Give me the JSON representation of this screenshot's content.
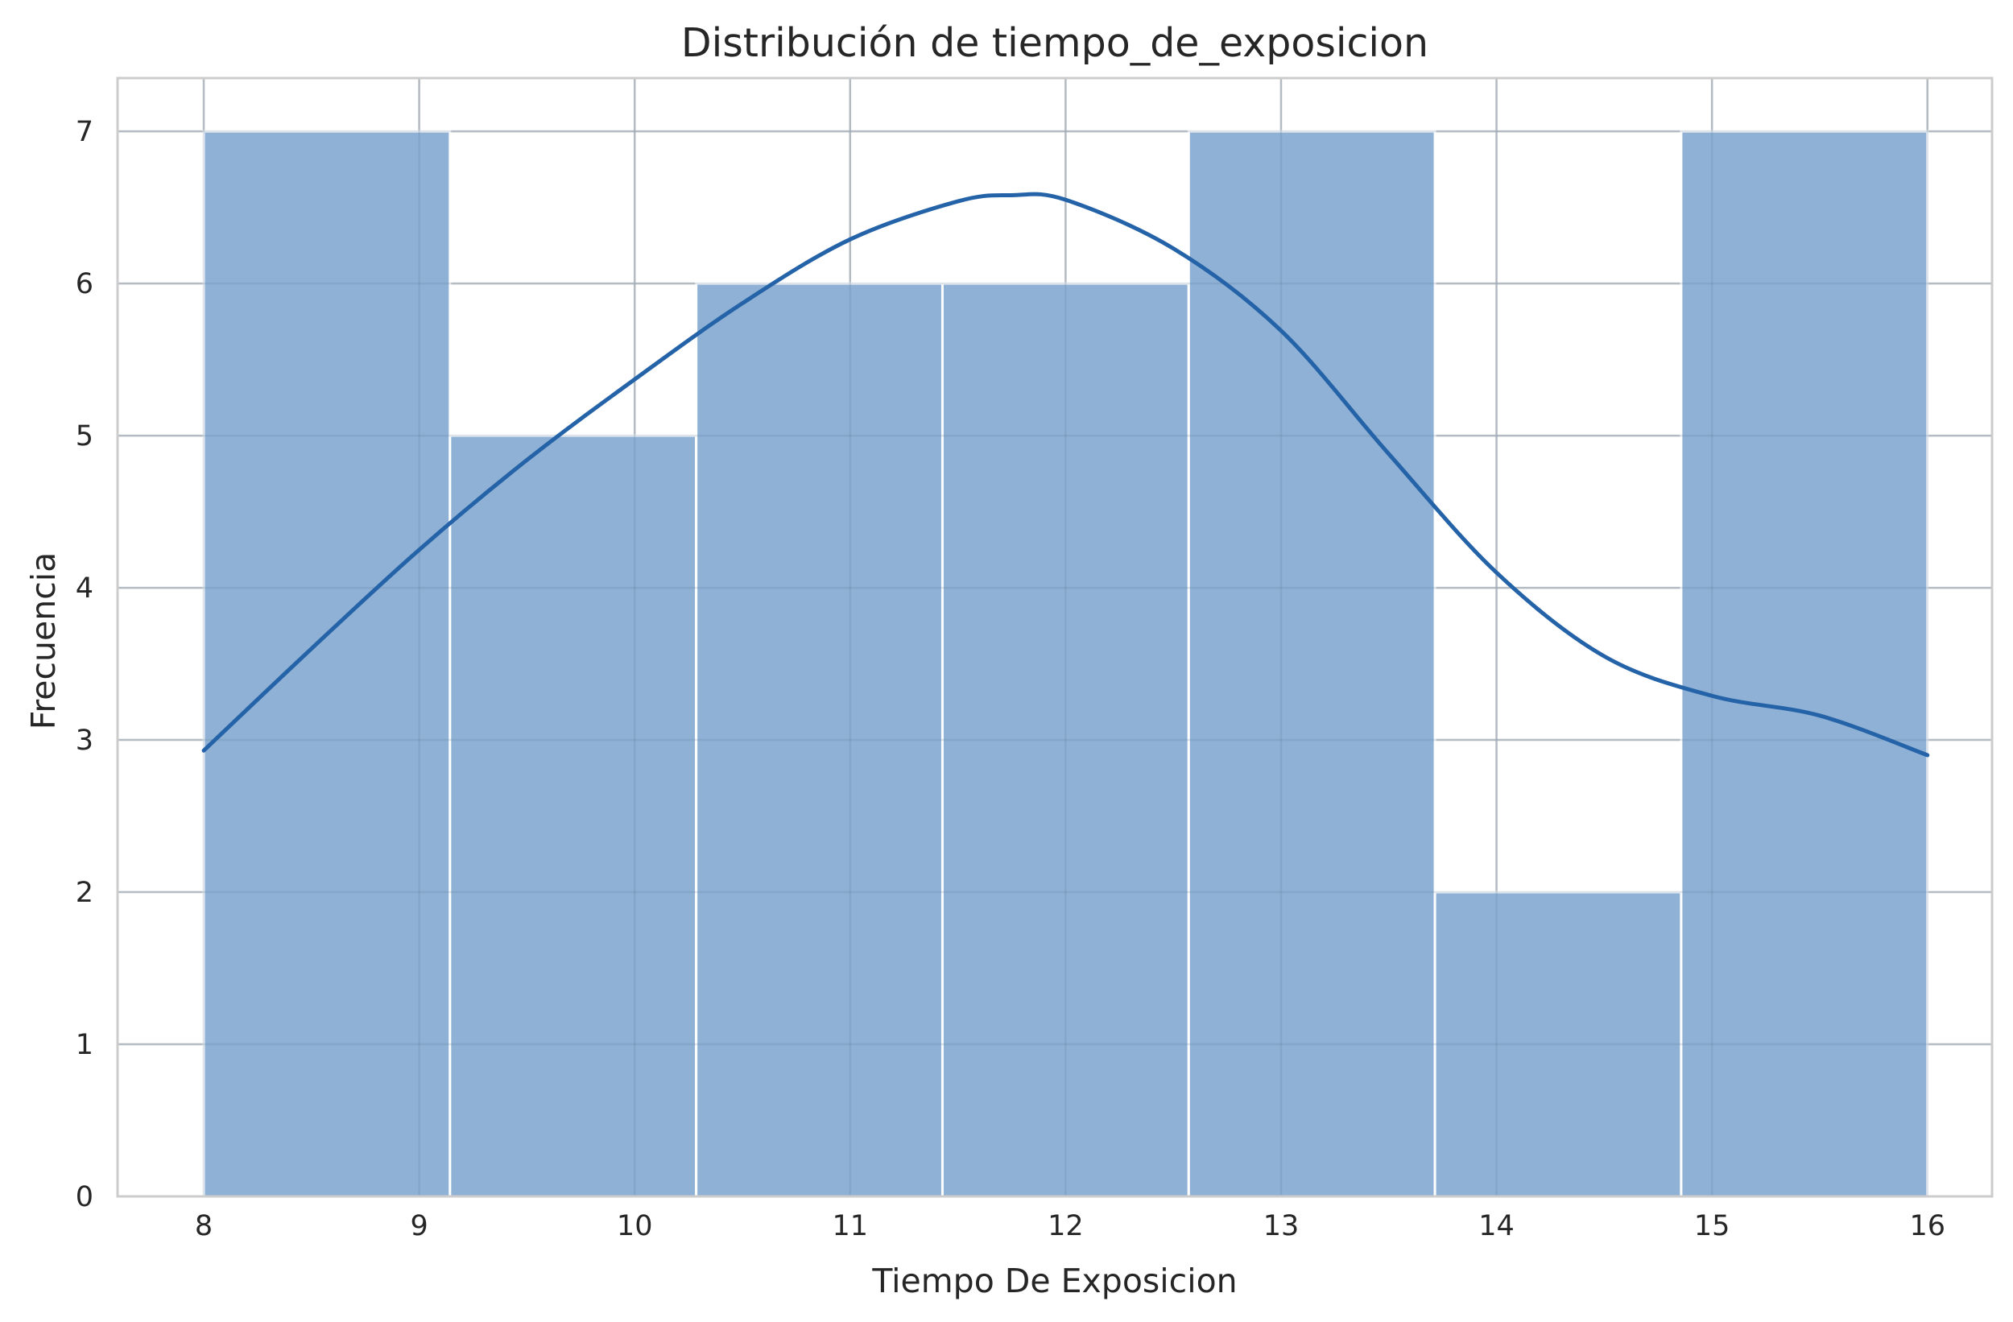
{
  "chart_data": {
    "type": "bar",
    "title": "Distribución de tiempo_de_exposicion",
    "xlabel": "Tiempo De Exposicion",
    "ylabel": "Frecuencia",
    "xlim": [
      7.6,
      16.3
    ],
    "ylim": [
      0,
      7.35
    ],
    "x_ticks": [
      8,
      9,
      10,
      11,
      12,
      13,
      14,
      15,
      16
    ],
    "y_ticks": [
      0,
      1,
      2,
      3,
      4,
      5,
      6,
      7
    ],
    "grid": true,
    "bins": [
      {
        "start": 8.0,
        "end": 9.142857,
        "count": 7
      },
      {
        "start": 9.142857,
        "end": 10.285714,
        "count": 5
      },
      {
        "start": 10.285714,
        "end": 11.428571,
        "count": 6
      },
      {
        "start": 11.428571,
        "end": 12.571429,
        "count": 6
      },
      {
        "start": 12.571429,
        "end": 13.714286,
        "count": 7
      },
      {
        "start": 13.714286,
        "end": 14.857143,
        "count": 2
      },
      {
        "start": 14.857143,
        "end": 16.0,
        "count": 7
      }
    ],
    "kde": {
      "x": [
        8.0,
        8.5,
        9.0,
        9.5,
        10.0,
        10.5,
        11.0,
        11.5,
        11.75,
        12.0,
        12.5,
        13.0,
        13.5,
        14.0,
        14.5,
        15.0,
        15.5,
        16.0
      ],
      "y": [
        2.93,
        3.6,
        4.25,
        4.84,
        5.37,
        5.87,
        6.29,
        6.54,
        6.58,
        6.55,
        6.23,
        5.69,
        4.88,
        4.1,
        3.55,
        3.29,
        3.16,
        2.9
      ]
    },
    "colors": {
      "bar_fill": "#8fb1d5",
      "bar_edge": "#ffffff",
      "kde_line": "#2563a8",
      "grid": "#cccccc",
      "axes_edge": "#cccccc",
      "text": "#262626"
    }
  }
}
